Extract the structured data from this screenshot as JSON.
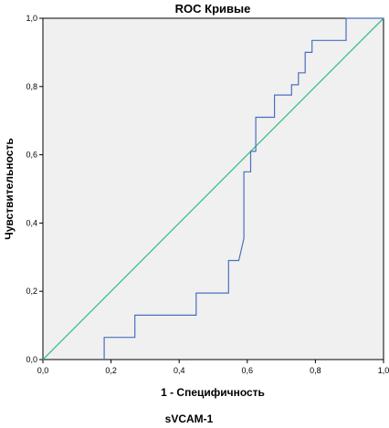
{
  "chart_data": {
    "type": "line",
    "title": "ROC Кривые",
    "xlabel": "1 - Специфичность",
    "ylabel": "Чувствительность",
    "caption": "sVCAM-1",
    "xlim": [
      0,
      1
    ],
    "ylim": [
      0,
      1
    ],
    "x_ticks": [
      "0,0",
      "0,2",
      "0,4",
      "0,6",
      "0,8",
      "1,0"
    ],
    "y_ticks": [
      "0,0",
      "0,2",
      "0,4",
      "0,6",
      "0,8",
      "1,0"
    ],
    "grid": false,
    "colors": {
      "background": "#f0f0f0",
      "roc": "#4a6fbf",
      "reference": "#3fbf8f"
    },
    "series": [
      {
        "x": [
          0.18,
          0.18,
          0.27,
          0.27,
          0.45,
          0.45,
          0.545,
          0.545,
          0.575,
          0.59,
          0.59,
          0.61,
          0.61,
          0.625,
          0.625,
          0.64,
          0.64,
          0.68,
          0.68,
          0.73,
          0.73,
          0.75,
          0.75,
          0.77,
          0.77,
          0.79,
          0.79,
          0.89,
          0.89,
          1.0
        ],
        "y": [
          0.0,
          0.065,
          0.065,
          0.13,
          0.13,
          0.195,
          0.195,
          0.29,
          0.29,
          0.355,
          0.55,
          0.55,
          0.61,
          0.61,
          0.71,
          0.71,
          0.71,
          0.71,
          0.775,
          0.775,
          0.805,
          0.805,
          0.84,
          0.84,
          0.9,
          0.9,
          0.935,
          0.935,
          1.0,
          1.0
        ]
      },
      {
        "x": [
          0,
          1
        ],
        "y": [
          0,
          1
        ]
      }
    ]
  }
}
